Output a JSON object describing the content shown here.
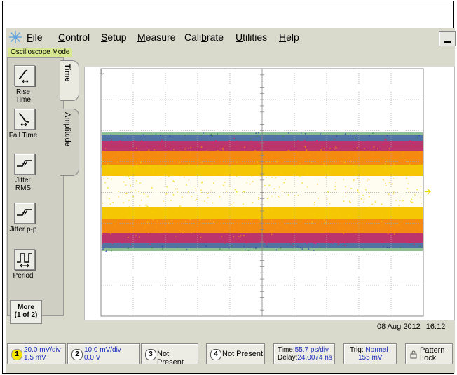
{
  "menu": {
    "items": [
      {
        "label": "File",
        "key": "F",
        "rest": "ile"
      },
      {
        "label": "Control",
        "key": "C",
        "rest": "ontrol"
      },
      {
        "label": "Setup",
        "key": "S",
        "rest": "etup"
      },
      {
        "label": "Measure",
        "key": "M",
        "rest": "easure"
      },
      {
        "label": "Calibrate",
        "pre": "Cali",
        "key": "b",
        "rest": "rate"
      },
      {
        "label": "Utilities",
        "key": "U",
        "rest": "tilities"
      },
      {
        "label": "Help",
        "key": "H",
        "rest": "elp"
      }
    ]
  },
  "mode_label": "Oscilloscope Mode",
  "tabs": {
    "time": "Time",
    "amplitude": "Amplitude"
  },
  "measurements": [
    {
      "label": "Rise Time",
      "icon": "rise-time-icon"
    },
    {
      "label": "Fall Time",
      "icon": "fall-time-icon"
    },
    {
      "label": "Jitter RMS",
      "icon": "jitter-rms-icon"
    },
    {
      "label": "Jitter p-p",
      "icon": "jitter-pp-icon"
    },
    {
      "label": "Period",
      "icon": "period-icon"
    }
  ],
  "more": {
    "line1": "More",
    "line2": "(1 of 2)"
  },
  "status": {
    "date": "08 Aug 2012",
    "time": "16:12"
  },
  "channels": [
    {
      "num": "1",
      "line1": "20.0 mV/div",
      "line2": "1.5 mV",
      "color": "#f5e600"
    },
    {
      "num": "2",
      "line1": "10.0 mV/div",
      "line2": "0.0 V",
      "color": "#ffffff"
    },
    {
      "num": "3",
      "label": "Not Present"
    },
    {
      "num": "4",
      "label": "Not Present"
    }
  ],
  "timebase": {
    "time_prefix": "Time:",
    "time_value": "55.7 ps/div",
    "delay_prefix": "Delay:",
    "delay_value": "24.0074 ns"
  },
  "trigger": {
    "prefix": "Trig:",
    "mode": "Normal",
    "level": "155 mV"
  },
  "pattern_lock": {
    "line1": "Pattern",
    "line2": "Lock"
  },
  "colors": {
    "trace_core": "#ffffff",
    "trace_inner": "#f5d400",
    "trace_mid": "#ff9a00",
    "trace_edge": "#e0205a",
    "trace_outer": "#2a3fb0",
    "trace_fringe": "#2f8a3a"
  }
}
